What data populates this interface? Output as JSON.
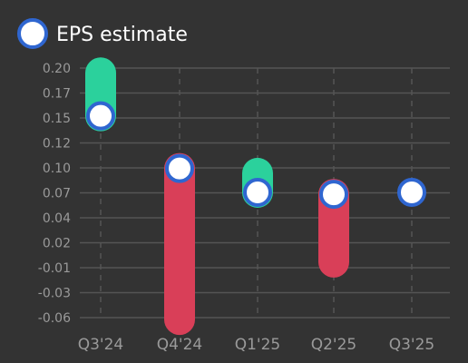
{
  "legend": {
    "label": "EPS estimate"
  },
  "colors": {
    "background": "#333333",
    "beat": "#2bd19c",
    "miss": "#d93f58",
    "estimate_fill": "#ffffff",
    "estimate_stroke": "#2f66d0",
    "grid": "#555555",
    "tick_text": "#9a9a9a"
  },
  "chart_data": {
    "type": "range-dot",
    "categories": [
      "Q3'24",
      "Q4'24",
      "Q1'25",
      "Q2'25",
      "Q3'25"
    ],
    "series": [
      {
        "name": "EPS estimate",
        "values": [
          0.15,
          0.095,
          0.07,
          0.068,
          0.07
        ]
      },
      {
        "values": [
          0.195,
          -0.063,
          0.09,
          -0.003,
          null
        ]
      }
    ],
    "yticks": [
      "0.20",
      "0.17",
      "0.15",
      "0.12",
      "0.10",
      "0.07",
      "0.04",
      "0.02",
      "-0.01",
      "-0.03",
      "-0.06"
    ],
    "ylim": [
      -0.061,
      0.2
    ],
    "grid": true,
    "legend_position": "top-left"
  }
}
